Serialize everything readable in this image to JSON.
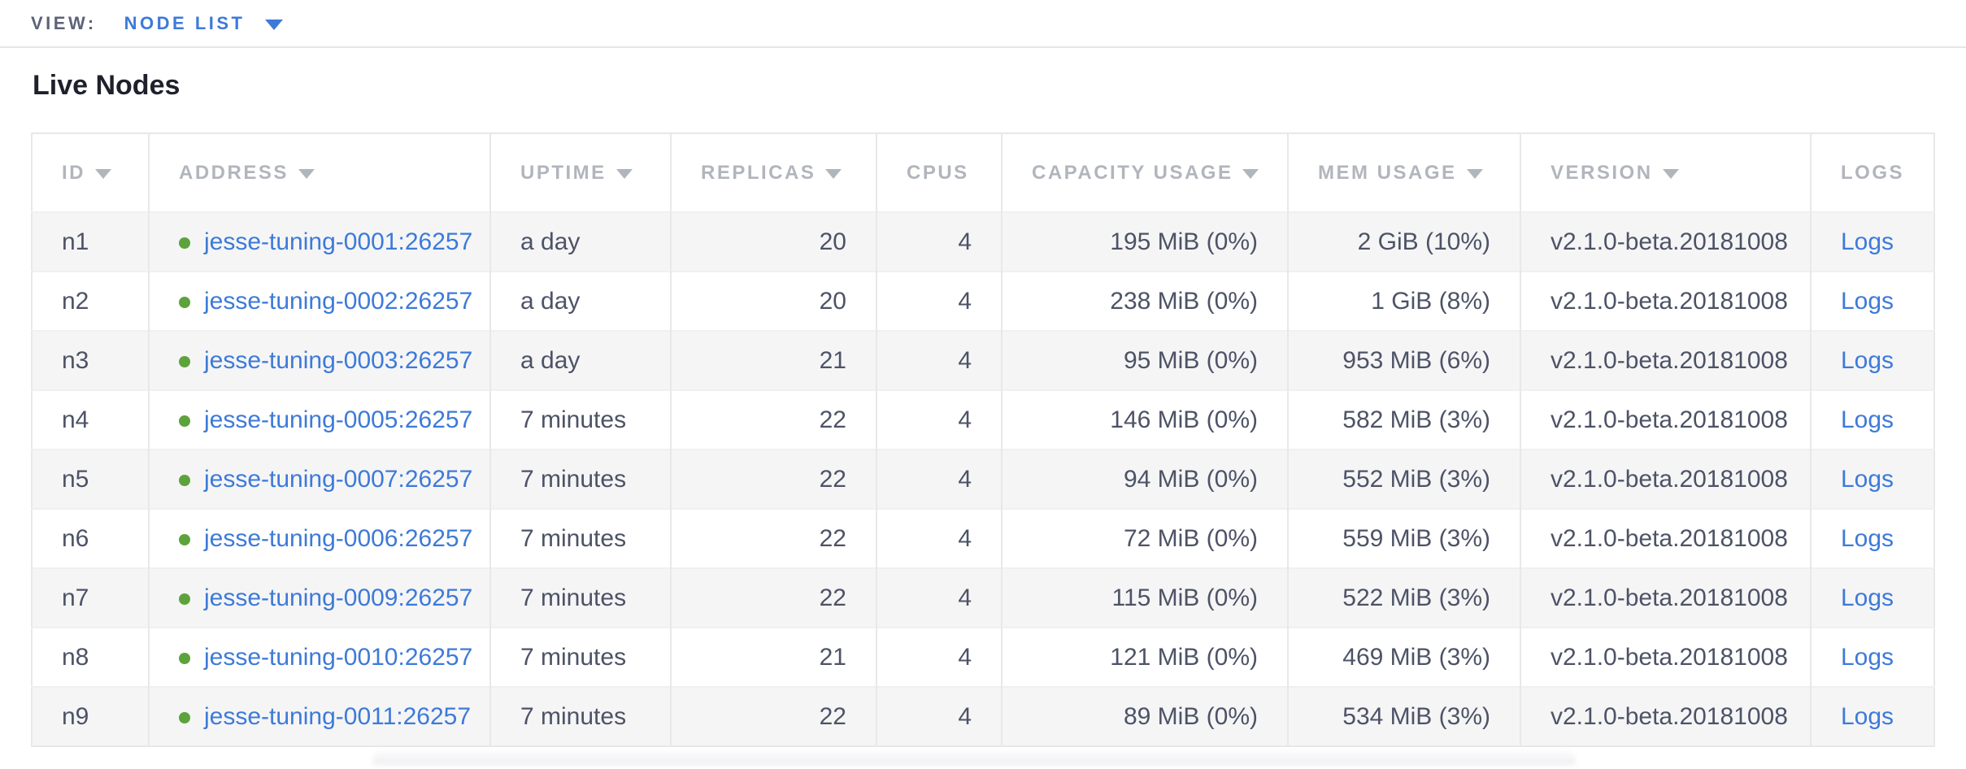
{
  "view_bar": {
    "label": "VIEW:",
    "selected": "NODE LIST",
    "accent_color": "#3d7ad8"
  },
  "page": {
    "title": "Live Nodes"
  },
  "table": {
    "link_color": "#3d7ad8",
    "status_colors": {
      "healthy": "#5da33b"
    },
    "columns": [
      {
        "id": "id",
        "label": "ID",
        "sortable": true,
        "align": "left"
      },
      {
        "id": "address",
        "label": "ADDRESS",
        "sortable": true,
        "align": "left"
      },
      {
        "id": "uptime",
        "label": "UPTIME",
        "sortable": true,
        "align": "left"
      },
      {
        "id": "replicas",
        "label": "REPLICAS",
        "sortable": true,
        "align": "right"
      },
      {
        "id": "cpus",
        "label": "CPUS",
        "sortable": false,
        "align": "right"
      },
      {
        "id": "capacity",
        "label": "CAPACITY USAGE",
        "sortable": true,
        "align": "right"
      },
      {
        "id": "mem",
        "label": "MEM USAGE",
        "sortable": true,
        "align": "right"
      },
      {
        "id": "version",
        "label": "VERSION",
        "sortable": true,
        "align": "left"
      },
      {
        "id": "logs",
        "label": "LOGS",
        "sortable": false,
        "align": "left"
      }
    ],
    "rows": [
      {
        "id": "n1",
        "status": "healthy",
        "address": "jesse-tuning-0001:26257",
        "uptime": "a day",
        "replicas": "20",
        "cpus": "4",
        "capacity": "195 MiB (0%)",
        "mem": "2 GiB (10%)",
        "version": "v2.1.0-beta.20181008",
        "logs": "Logs"
      },
      {
        "id": "n2",
        "status": "healthy",
        "address": "jesse-tuning-0002:26257",
        "uptime": "a day",
        "replicas": "20",
        "cpus": "4",
        "capacity": "238 MiB (0%)",
        "mem": "1 GiB (8%)",
        "version": "v2.1.0-beta.20181008",
        "logs": "Logs"
      },
      {
        "id": "n3",
        "status": "healthy",
        "address": "jesse-tuning-0003:26257",
        "uptime": "a day",
        "replicas": "21",
        "cpus": "4",
        "capacity": "95 MiB (0%)",
        "mem": "953 MiB (6%)",
        "version": "v2.1.0-beta.20181008",
        "logs": "Logs"
      },
      {
        "id": "n4",
        "status": "healthy",
        "address": "jesse-tuning-0005:26257",
        "uptime": "7 minutes",
        "replicas": "22",
        "cpus": "4",
        "capacity": "146 MiB (0%)",
        "mem": "582 MiB (3%)",
        "version": "v2.1.0-beta.20181008",
        "logs": "Logs"
      },
      {
        "id": "n5",
        "status": "healthy",
        "address": "jesse-tuning-0007:26257",
        "uptime": "7 minutes",
        "replicas": "22",
        "cpus": "4",
        "capacity": "94 MiB (0%)",
        "mem": "552 MiB (3%)",
        "version": "v2.1.0-beta.20181008",
        "logs": "Logs"
      },
      {
        "id": "n6",
        "status": "healthy",
        "address": "jesse-tuning-0006:26257",
        "uptime": "7 minutes",
        "replicas": "22",
        "cpus": "4",
        "capacity": "72 MiB (0%)",
        "mem": "559 MiB (3%)",
        "version": "v2.1.0-beta.20181008",
        "logs": "Logs"
      },
      {
        "id": "n7",
        "status": "healthy",
        "address": "jesse-tuning-0009:26257",
        "uptime": "7 minutes",
        "replicas": "22",
        "cpus": "4",
        "capacity": "115 MiB (0%)",
        "mem": "522 MiB (3%)",
        "version": "v2.1.0-beta.20181008",
        "logs": "Logs"
      },
      {
        "id": "n8",
        "status": "healthy",
        "address": "jesse-tuning-0010:26257",
        "uptime": "7 minutes",
        "replicas": "21",
        "cpus": "4",
        "capacity": "121 MiB (0%)",
        "mem": "469 MiB (3%)",
        "version": "v2.1.0-beta.20181008",
        "logs": "Logs"
      },
      {
        "id": "n9",
        "status": "healthy",
        "address": "jesse-tuning-0011:26257",
        "uptime": "7 minutes",
        "replicas": "22",
        "cpus": "4",
        "capacity": "89 MiB (0%)",
        "mem": "534 MiB (3%)",
        "version": "v2.1.0-beta.20181008",
        "logs": "Logs"
      }
    ]
  }
}
